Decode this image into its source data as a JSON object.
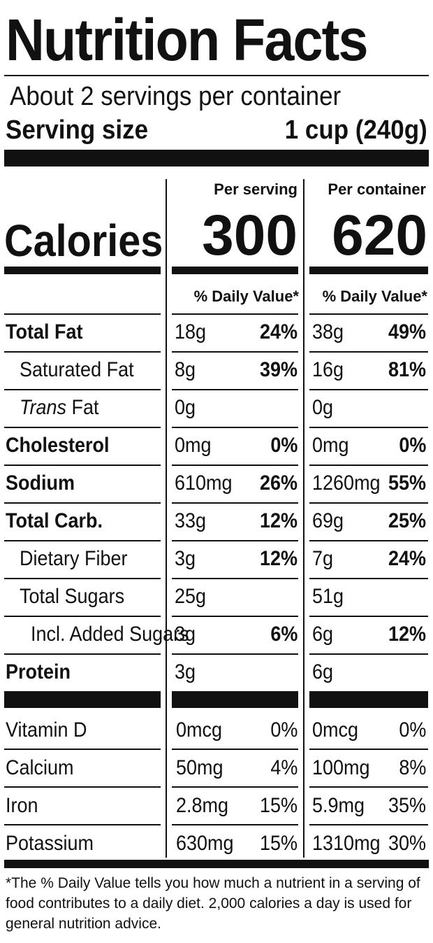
{
  "title": "Nutrition Facts",
  "servings_per_container": "About 2 servings per container",
  "serving_size_label": "Serving size",
  "serving_size_value": "1 cup (240g)",
  "calories_label": "Calories",
  "columns": {
    "per_serving": "Per serving",
    "per_container": "Per container"
  },
  "calories": {
    "per_serving": "300",
    "per_container": "620"
  },
  "daily_value_header": "% Daily Value*",
  "nutrients": [
    {
      "label": "Total Fat",
      "bold": true,
      "indent": 0,
      "serving_amount": "18g",
      "serving_dv": "24%",
      "container_amount": "38g",
      "container_dv": "49%"
    },
    {
      "label": "Saturated Fat",
      "bold": false,
      "indent": 1,
      "serving_amount": "8g",
      "serving_dv": "39%",
      "container_amount": "16g",
      "container_dv": "81%"
    },
    {
      "label_italic": "Trans",
      "label": " Fat",
      "bold": false,
      "indent": 1,
      "serving_amount": "0g",
      "serving_dv": "",
      "container_amount": "0g",
      "container_dv": ""
    },
    {
      "label": "Cholesterol",
      "bold": true,
      "indent": 0,
      "serving_amount": "0mg",
      "serving_dv": "0%",
      "container_amount": "0mg",
      "container_dv": "0%"
    },
    {
      "label": "Sodium",
      "bold": true,
      "indent": 0,
      "serving_amount": "610mg",
      "serving_dv": "26%",
      "container_amount": "1260mg",
      "container_dv": "55%"
    },
    {
      "label": "Total Carb.",
      "bold": true,
      "indent": 0,
      "serving_amount": "33g",
      "serving_dv": "12%",
      "container_amount": "69g",
      "container_dv": "25%"
    },
    {
      "label": "Dietary Fiber",
      "bold": false,
      "indent": 1,
      "serving_amount": "3g",
      "serving_dv": "12%",
      "container_amount": "7g",
      "container_dv": "24%"
    },
    {
      "label": "Total Sugars",
      "bold": false,
      "indent": 1,
      "serving_amount": "25g",
      "serving_dv": "",
      "container_amount": "51g",
      "container_dv": ""
    },
    {
      "label": "Incl. Added Sugars",
      "bold": false,
      "indent": 2,
      "serving_amount": "3g",
      "serving_dv": "6%",
      "container_amount": "6g",
      "container_dv": "12%"
    },
    {
      "label": "Protein",
      "bold": true,
      "indent": 0,
      "serving_amount": "3g",
      "serving_dv": "",
      "container_amount": "6g",
      "container_dv": ""
    }
  ],
  "vitamins": [
    {
      "label": "Vitamin D",
      "serving_amount": "0mcg",
      "serving_dv": "0%",
      "container_amount": "0mcg",
      "container_dv": "0%"
    },
    {
      "label": "Calcium",
      "serving_amount": "50mg",
      "serving_dv": "4%",
      "container_amount": "100mg",
      "container_dv": "8%"
    },
    {
      "label": "Iron",
      "serving_amount": "2.8mg",
      "serving_dv": "15%",
      "container_amount": "5.9mg",
      "container_dv": "35%"
    },
    {
      "label": "Potassium",
      "serving_amount": "630mg",
      "serving_dv": "15%",
      "container_amount": "1310mg",
      "container_dv": "30%"
    }
  ],
  "footnote": "*The % Daily Value tells you how much a nutrient in a serving of food contributes to a daily diet. 2,000 calories a day is used for general nutrition advice."
}
